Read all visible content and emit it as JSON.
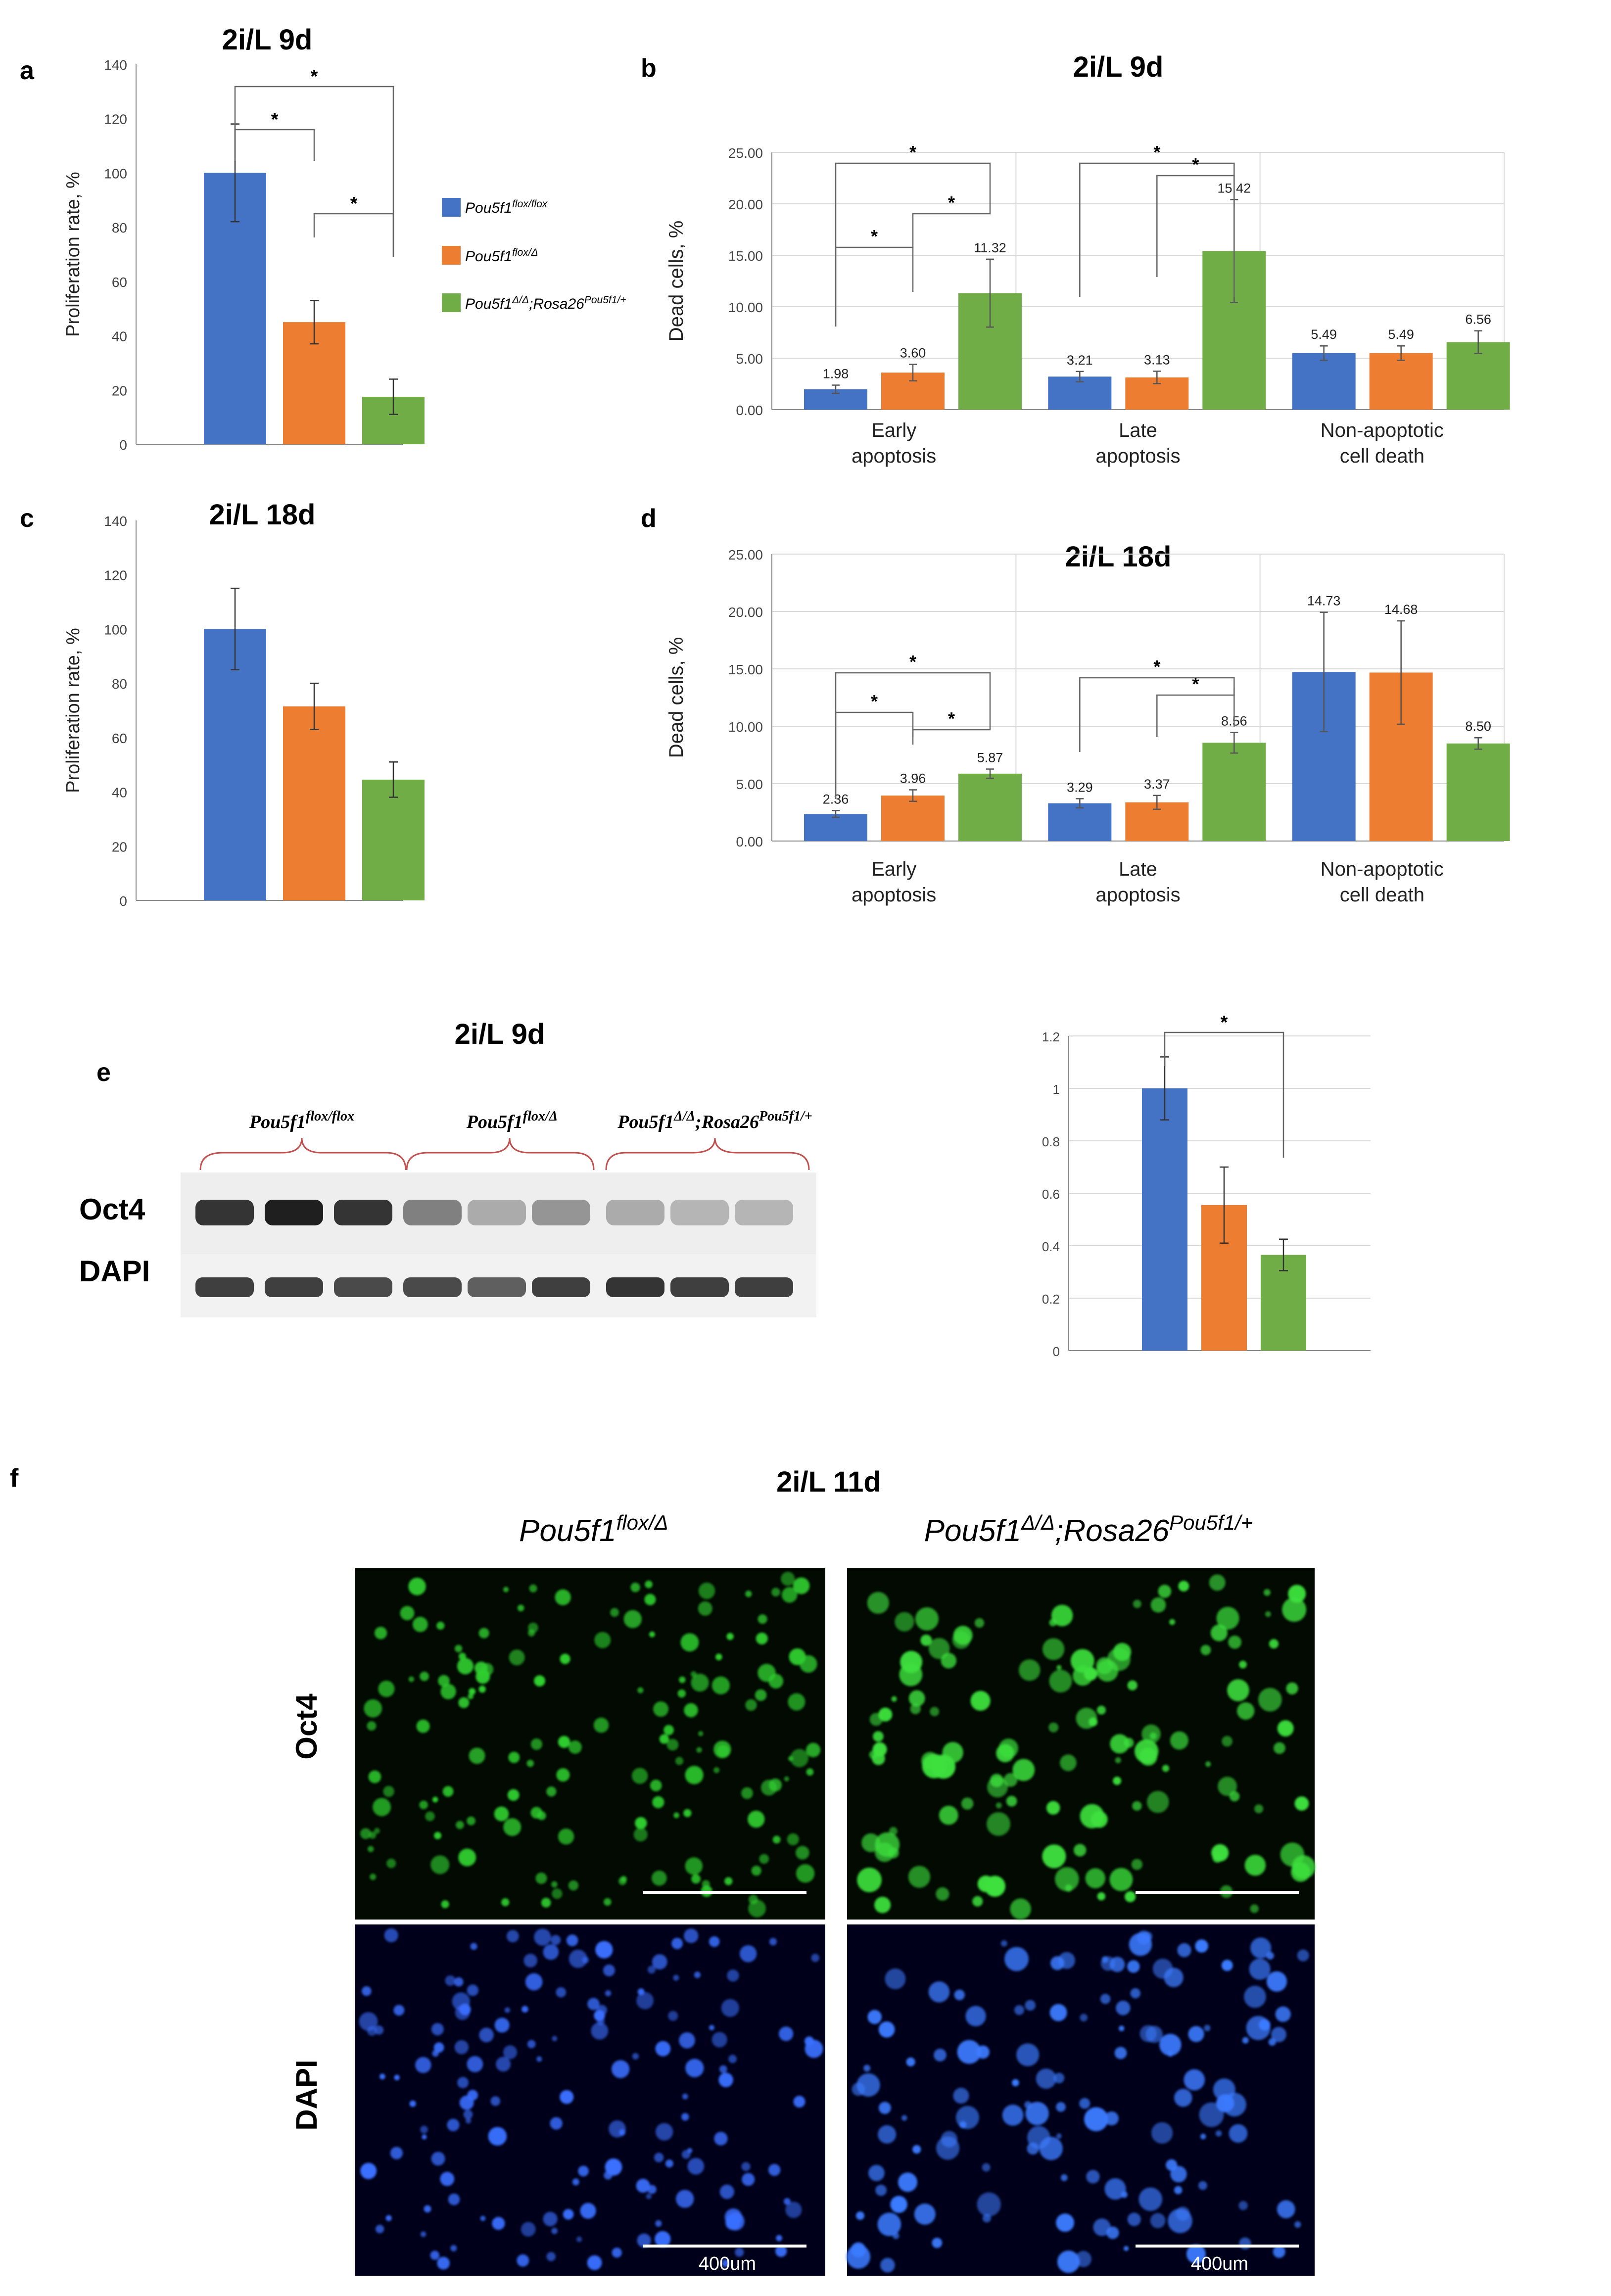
{
  "colors": {
    "blue": "#4472C4",
    "orange": "#ED7D31",
    "green": "#70AD47",
    "axis": "#888888",
    "grid": "#d9d9d9"
  },
  "legend": {
    "items": [
      {
        "color": "#4472C4",
        "base": "Pou5f1",
        "sup": "flox/flox"
      },
      {
        "color": "#ED7D31",
        "base": "Pou5f1",
        "sup": "flox/Δ"
      },
      {
        "color": "#70AD47",
        "base": "Pou5f1",
        "sup1": "Δ/Δ",
        "mid": ";Rosa26",
        "sup2": "Pou5f1/+"
      }
    ]
  },
  "chart_data": [
    {
      "id": "a",
      "panel_letter": "a",
      "type": "bar",
      "title": "2i/L 9d",
      "ylabel": "Proliferation rate, %",
      "ylim": [
        0,
        140
      ],
      "yticks": [
        0,
        20,
        40,
        60,
        80,
        100,
        120,
        140
      ],
      "grid": false,
      "values": [
        100,
        45,
        17.5
      ],
      "errors": [
        18,
        8,
        6.5
      ],
      "significance": [
        {
          "from": 0,
          "to": 1,
          "label": "*"
        },
        {
          "from": 0,
          "to": 2,
          "label": "*"
        },
        {
          "from": 1,
          "to": 2,
          "label": "*"
        }
      ]
    },
    {
      "id": "b",
      "panel_letter": "b",
      "type": "bar",
      "title": "2i/L 9d",
      "ylabel": "Dead cells, %",
      "ylim": [
        0,
        25
      ],
      "yticks": [
        "0.00",
        "5.00",
        "10.00",
        "15.00",
        "20.00",
        "25.00"
      ],
      "grid": true,
      "categories": [
        [
          "Early",
          "apoptosis"
        ],
        [
          "Late",
          "apoptosis"
        ],
        [
          "Non-apoptotic",
          "cell death"
        ]
      ],
      "series_values": [
        [
          1.98,
          3.6,
          11.32
        ],
        [
          3.21,
          3.13,
          15.42
        ],
        [
          5.49,
          5.49,
          6.56
        ]
      ],
      "labels": [
        [
          "1.98",
          "3.60",
          "11.32"
        ],
        [
          "3.21",
          "3.13",
          "15.42"
        ],
        [
          "5.49",
          "5.49",
          "6.56"
        ]
      ],
      "errors": [
        [
          0.4,
          0.8,
          3.3
        ],
        [
          0.5,
          0.6,
          5.0
        ],
        [
          0.7,
          0.7,
          1.1
        ]
      ],
      "significance": [
        {
          "group": 0,
          "from": 0,
          "to": 2,
          "label": "*"
        },
        {
          "group": 0,
          "from": 0,
          "to": 1,
          "label": "*"
        },
        {
          "group": 0,
          "from": 1,
          "to": 2,
          "label": "*"
        },
        {
          "group": 1,
          "from": 0,
          "to": 2,
          "label": "*"
        },
        {
          "group": 1,
          "from": 1,
          "to": 2,
          "label": "*"
        }
      ]
    },
    {
      "id": "c",
      "panel_letter": "c",
      "type": "bar",
      "title": "2i/L 18d",
      "ylabel": "Proliferation rate, %",
      "ylim": [
        0,
        140
      ],
      "yticks": [
        0,
        20,
        40,
        60,
        80,
        100,
        120,
        140
      ],
      "grid": false,
      "values": [
        100,
        71.5,
        44.5
      ],
      "errors": [
        15,
        8.5,
        6.5
      ],
      "significance": []
    },
    {
      "id": "d",
      "panel_letter": "d",
      "type": "bar",
      "title": "2i/L 18d",
      "ylabel": "Dead cells, %",
      "ylim": [
        0,
        25
      ],
      "yticks": [
        "0.00",
        "5.00",
        "10.00",
        "15.00",
        "20.00",
        "25.00"
      ],
      "grid": true,
      "categories": [
        [
          "Early",
          "apoptosis"
        ],
        [
          "Late",
          "apoptosis"
        ],
        [
          "Non-apoptotic",
          "cell death"
        ]
      ],
      "series_values": [
        [
          2.36,
          3.96,
          5.87
        ],
        [
          3.29,
          3.37,
          8.56
        ],
        [
          14.73,
          14.68,
          8.5
        ]
      ],
      "labels": [
        [
          "2.36",
          "3.96",
          "5.87"
        ],
        [
          "3.29",
          "3.37",
          "8.56"
        ],
        [
          "14.73",
          "14.68",
          "8.50"
        ]
      ],
      "errors": [
        [
          0.3,
          0.5,
          0.4
        ],
        [
          0.4,
          0.6,
          0.9
        ],
        [
          5.2,
          4.5,
          0.5
        ]
      ],
      "significance": [
        {
          "group": 0,
          "from": 0,
          "to": 2,
          "label": "*"
        },
        {
          "group": 0,
          "from": 0,
          "to": 1,
          "label": "*"
        },
        {
          "group": 0,
          "from": 1,
          "to": 2,
          "label": "*"
        },
        {
          "group": 1,
          "from": 0,
          "to": 2,
          "label": "*"
        },
        {
          "group": 1,
          "from": 1,
          "to": 2,
          "label": "*"
        }
      ]
    },
    {
      "id": "e",
      "panel_letter": "e",
      "type": "bar",
      "title": "",
      "ylabel": "",
      "ylim": [
        0,
        1.2
      ],
      "yticks": [
        "0",
        "0.2",
        "0.4",
        "0.6",
        "0.8",
        "1",
        "1.2"
      ],
      "grid": true,
      "values": [
        1.0,
        0.555,
        0.365
      ],
      "errors": [
        0.12,
        0.145,
        0.06
      ],
      "significance": [
        {
          "from": 0,
          "to": 2,
          "label": "*"
        }
      ]
    }
  ],
  "blot": {
    "title": "2i/L 9d",
    "panel_letter": "e",
    "row_labels": [
      "Oct4",
      "DAPI"
    ],
    "groups": [
      {
        "base": "Pou5f1",
        "sup": "flox/flox"
      },
      {
        "base": "Pou5f1",
        "sup": "flox/Δ"
      },
      {
        "base": "Pou5f1",
        "sup1": "Δ/Δ",
        "mid": ";Rosa26",
        "sup2": "Pou5f1/+"
      }
    ],
    "oct4_intensity": [
      0.85,
      0.95,
      0.85,
      0.5,
      0.3,
      0.4,
      0.3,
      0.25,
      0.25
    ],
    "dapi_intensity": [
      0.8,
      0.8,
      0.75,
      0.75,
      0.65,
      0.8,
      0.85,
      0.8,
      0.8
    ]
  },
  "microscopy": {
    "panel_letter": "f",
    "title": "2i/L 11d",
    "columns": [
      {
        "base": "Pou5f1",
        "sup": "flox/Δ"
      },
      {
        "base": "Pou5f1",
        "sup1": "Δ/Δ",
        "mid": ";Rosa26",
        "sup2": "Pou5f1/+"
      }
    ],
    "row_labels": [
      "Oct4",
      "DAPI"
    ],
    "scale_label": "400um"
  }
}
